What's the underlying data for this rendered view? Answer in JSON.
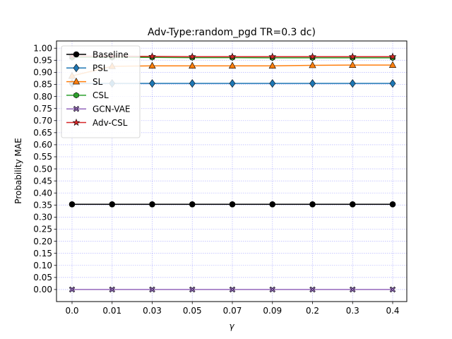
{
  "chart_data": {
    "type": "line",
    "title": "Adv-Type:random_pgd TR=0.3 dc)",
    "xlabel": "γ",
    "ylabel": "Probability MAE",
    "categories": [
      "0.0",
      "0.01",
      "0.03",
      "0.05",
      "0.07",
      "0.09",
      "0.2",
      "0.3",
      "0.4"
    ],
    "yticks": [
      "0.00",
      "0.05",
      "0.10",
      "0.15",
      "0.20",
      "0.25",
      "0.30",
      "0.35",
      "0.40",
      "0.45",
      "0.50",
      "0.55",
      "0.60",
      "0.65",
      "0.70",
      "0.75",
      "0.80",
      "0.85",
      "0.90",
      "0.95",
      "1.00"
    ],
    "ylim": [
      -0.05,
      1.03
    ],
    "grid": true,
    "grid_color": "#0000ff",
    "legend_position": "upper-left",
    "series": [
      {
        "name": "Baseline",
        "color": "#000000",
        "marker": "circle",
        "values": [
          0.353,
          0.353,
          0.353,
          0.353,
          0.353,
          0.353,
          0.353,
          0.353,
          0.353
        ]
      },
      {
        "name": "PSL",
        "color": "#1f77b4",
        "marker": "diamond",
        "values": [
          0.854,
          0.854,
          0.854,
          0.854,
          0.854,
          0.854,
          0.854,
          0.854,
          0.854
        ]
      },
      {
        "name": "SL",
        "color": "#ff7f0e",
        "marker": "triangle",
        "values": [
          0.885,
          0.925,
          0.927,
          0.927,
          0.927,
          0.927,
          0.929,
          0.93,
          0.93
        ]
      },
      {
        "name": "CSL",
        "color": "#2ca02c",
        "marker": "hexagon",
        "values": [
          0.962,
          0.962,
          0.962,
          0.961,
          0.961,
          0.96,
          0.96,
          0.96,
          0.96
        ]
      },
      {
        "name": "GCN-VAE",
        "color": "#9467bd",
        "marker": "x",
        "values": [
          0.0,
          0.0,
          0.0,
          0.0,
          0.0,
          0.0,
          0.0,
          0.0,
          0.0
        ]
      },
      {
        "name": "Adv-CSL",
        "color": "#d62728",
        "marker": "star",
        "values": [
          0.967,
          0.967,
          0.966,
          0.965,
          0.965,
          0.965,
          0.965,
          0.965,
          0.965
        ]
      }
    ]
  }
}
